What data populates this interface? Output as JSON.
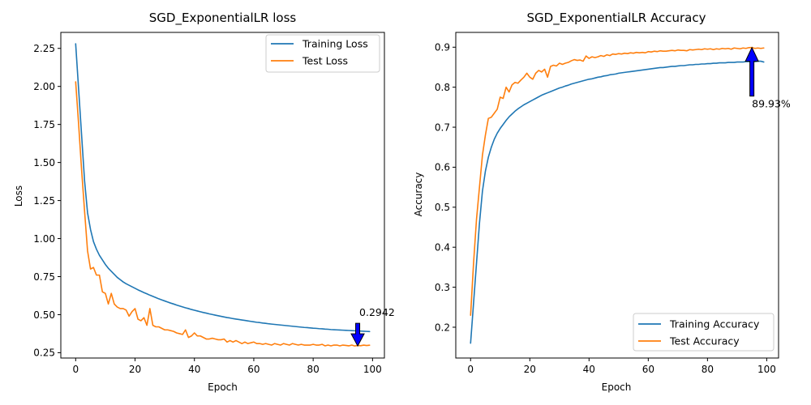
{
  "chart_data": [
    {
      "type": "line",
      "title": "SGD_ExponentialLR loss",
      "xlabel": "Epoch",
      "ylabel": "Loss",
      "xlim": [
        -5,
        104
      ],
      "ylim": [
        0.215,
        2.355
      ],
      "xticks": [
        0,
        20,
        40,
        60,
        80,
        100
      ],
      "xtick_labels": [
        "0",
        "20",
        "40",
        "60",
        "80",
        "100"
      ],
      "yticks": [
        0.25,
        0.5,
        0.75,
        1.0,
        1.25,
        1.5,
        1.75,
        2.0,
        2.25
      ],
      "ytick_labels": [
        "0.25",
        "0.50",
        "0.75",
        "1.00",
        "1.25",
        "1.50",
        "1.75",
        "2.00",
        "2.25"
      ],
      "grid": false,
      "legend_position": "top-right",
      "x": [
        0,
        1,
        2,
        3,
        4,
        5,
        6,
        7,
        8,
        9,
        10,
        11,
        12,
        13,
        14,
        15,
        16,
        17,
        18,
        19,
        20,
        21,
        22,
        23,
        24,
        25,
        26,
        27,
        28,
        29,
        30,
        31,
        32,
        33,
        34,
        35,
        36,
        37,
        38,
        39,
        40,
        41,
        42,
        43,
        44,
        45,
        46,
        47,
        48,
        49,
        50,
        51,
        52,
        53,
        54,
        55,
        56,
        57,
        58,
        59,
        60,
        61,
        62,
        63,
        64,
        65,
        66,
        67,
        68,
        69,
        70,
        71,
        72,
        73,
        74,
        75,
        76,
        77,
        78,
        79,
        80,
        81,
        82,
        83,
        84,
        85,
        86,
        87,
        88,
        89,
        90,
        91,
        92,
        93,
        94,
        95,
        96,
        97,
        98,
        99
      ],
      "series": [
        {
          "name": "Training Loss",
          "color": "#1f77b4",
          "values": [
            2.28,
            1.98,
            1.68,
            1.38,
            1.17,
            1.06,
            0.98,
            0.93,
            0.89,
            0.86,
            0.83,
            0.805,
            0.785,
            0.765,
            0.745,
            0.73,
            0.715,
            0.703,
            0.693,
            0.683,
            0.673,
            0.663,
            0.654,
            0.645,
            0.637,
            0.628,
            0.62,
            0.612,
            0.604,
            0.597,
            0.59,
            0.583,
            0.576,
            0.57,
            0.563,
            0.557,
            0.551,
            0.545,
            0.54,
            0.534,
            0.529,
            0.524,
            0.519,
            0.514,
            0.51,
            0.505,
            0.501,
            0.497,
            0.493,
            0.489,
            0.485,
            0.481,
            0.478,
            0.474,
            0.471,
            0.468,
            0.465,
            0.462,
            0.459,
            0.456,
            0.453,
            0.45,
            0.448,
            0.445,
            0.443,
            0.44,
            0.438,
            0.436,
            0.434,
            0.432,
            0.43,
            0.428,
            0.426,
            0.424,
            0.422,
            0.42,
            0.418,
            0.416,
            0.415,
            0.413,
            0.411,
            0.41,
            0.408,
            0.407,
            0.405,
            0.404,
            0.402,
            0.401,
            0.4,
            0.399,
            0.398,
            0.397,
            0.396,
            0.395,
            0.394,
            0.393,
            0.392,
            0.391,
            0.39,
            0.389
          ]
        },
        {
          "name": "Test Loss",
          "color": "#ff7f0e",
          "values": [
            2.03,
            1.75,
            1.45,
            1.18,
            0.92,
            0.8,
            0.81,
            0.76,
            0.76,
            0.65,
            0.64,
            0.57,
            0.64,
            0.57,
            0.55,
            0.54,
            0.54,
            0.53,
            0.49,
            0.52,
            0.54,
            0.47,
            0.46,
            0.48,
            0.43,
            0.54,
            0.43,
            0.42,
            0.42,
            0.41,
            0.4,
            0.4,
            0.395,
            0.39,
            0.38,
            0.375,
            0.37,
            0.4,
            0.35,
            0.36,
            0.38,
            0.36,
            0.36,
            0.35,
            0.34,
            0.34,
            0.345,
            0.34,
            0.335,
            0.335,
            0.34,
            0.32,
            0.33,
            0.32,
            0.33,
            0.32,
            0.31,
            0.32,
            0.31,
            0.315,
            0.32,
            0.31,
            0.31,
            0.305,
            0.31,
            0.305,
            0.3,
            0.31,
            0.305,
            0.3,
            0.31,
            0.305,
            0.3,
            0.31,
            0.305,
            0.3,
            0.305,
            0.3,
            0.3,
            0.3,
            0.305,
            0.3,
            0.3,
            0.305,
            0.295,
            0.3,
            0.295,
            0.3,
            0.3,
            0.295,
            0.3,
            0.298,
            0.295,
            0.3,
            0.2942,
            0.298,
            0.296,
            0.3,
            0.297,
            0.299
          ]
        }
      ],
      "annotation": {
        "text": "0.2942",
        "x": 95,
        "y": 0.2942,
        "direction": "down",
        "color": "#0000ff"
      }
    },
    {
      "type": "line",
      "title": "SGD_ExponentialLR Accuracy",
      "xlabel": "Epoch",
      "ylabel": "Accuracy",
      "xlim": [
        -5,
        104
      ],
      "ylim": [
        0.123,
        0.937
      ],
      "xticks": [
        0,
        20,
        40,
        60,
        80,
        100
      ],
      "xtick_labels": [
        "0",
        "20",
        "40",
        "60",
        "80",
        "100"
      ],
      "yticks": [
        0.2,
        0.3,
        0.4,
        0.5,
        0.6,
        0.7,
        0.8,
        0.9
      ],
      "ytick_labels": [
        "0.2",
        "0.3",
        "0.4",
        "0.5",
        "0.6",
        "0.7",
        "0.8",
        "0.9"
      ],
      "grid": false,
      "legend_position": "bottom-right",
      "x": [
        0,
        1,
        2,
        3,
        4,
        5,
        6,
        7,
        8,
        9,
        10,
        11,
        12,
        13,
        14,
        15,
        16,
        17,
        18,
        19,
        20,
        21,
        22,
        23,
        24,
        25,
        26,
        27,
        28,
        29,
        30,
        31,
        32,
        33,
        34,
        35,
        36,
        37,
        38,
        39,
        40,
        41,
        42,
        43,
        44,
        45,
        46,
        47,
        48,
        49,
        50,
        51,
        52,
        53,
        54,
        55,
        56,
        57,
        58,
        59,
        60,
        61,
        62,
        63,
        64,
        65,
        66,
        67,
        68,
        69,
        70,
        71,
        72,
        73,
        74,
        75,
        76,
        77,
        78,
        79,
        80,
        81,
        82,
        83,
        84,
        85,
        86,
        87,
        88,
        89,
        90,
        91,
        92,
        93,
        94,
        95,
        96,
        97,
        98,
        99
      ],
      "series": [
        {
          "name": "Training Accuracy",
          "color": "#1f77b4",
          "values": [
            0.16,
            0.26,
            0.36,
            0.46,
            0.54,
            0.59,
            0.625,
            0.65,
            0.67,
            0.685,
            0.697,
            0.707,
            0.717,
            0.726,
            0.733,
            0.74,
            0.746,
            0.751,
            0.756,
            0.76,
            0.764,
            0.768,
            0.772,
            0.776,
            0.78,
            0.783,
            0.786,
            0.789,
            0.792,
            0.795,
            0.798,
            0.8,
            0.803,
            0.805,
            0.808,
            0.81,
            0.812,
            0.814,
            0.816,
            0.818,
            0.82,
            0.821,
            0.823,
            0.825,
            0.826,
            0.828,
            0.829,
            0.831,
            0.832,
            0.833,
            0.835,
            0.836,
            0.837,
            0.838,
            0.839,
            0.84,
            0.841,
            0.842,
            0.843,
            0.844,
            0.845,
            0.846,
            0.847,
            0.848,
            0.849,
            0.849,
            0.85,
            0.851,
            0.852,
            0.852,
            0.853,
            0.854,
            0.854,
            0.855,
            0.856,
            0.856,
            0.857,
            0.857,
            0.858,
            0.858,
            0.859,
            0.859,
            0.86,
            0.86,
            0.861,
            0.861,
            0.861,
            0.862,
            0.862,
            0.862,
            0.863,
            0.863,
            0.863,
            0.864,
            0.864,
            0.864,
            0.864,
            0.865,
            0.865,
            0.863
          ]
        },
        {
          "name": "Test Accuracy",
          "color": "#ff7f0e",
          "values": [
            0.23,
            0.36,
            0.47,
            0.55,
            0.63,
            0.68,
            0.722,
            0.725,
            0.735,
            0.745,
            0.775,
            0.772,
            0.8,
            0.788,
            0.806,
            0.812,
            0.81,
            0.818,
            0.825,
            0.835,
            0.825,
            0.82,
            0.835,
            0.842,
            0.838,
            0.845,
            0.825,
            0.852,
            0.855,
            0.853,
            0.86,
            0.857,
            0.86,
            0.862,
            0.866,
            0.869,
            0.867,
            0.868,
            0.865,
            0.878,
            0.872,
            0.876,
            0.874,
            0.876,
            0.879,
            0.877,
            0.881,
            0.879,
            0.883,
            0.882,
            0.884,
            0.883,
            0.885,
            0.884,
            0.886,
            0.885,
            0.887,
            0.886,
            0.887,
            0.886,
            0.889,
            0.888,
            0.89,
            0.889,
            0.891,
            0.89,
            0.89,
            0.891,
            0.892,
            0.891,
            0.893,
            0.892,
            0.892,
            0.891,
            0.894,
            0.893,
            0.894,
            0.895,
            0.894,
            0.896,
            0.895,
            0.896,
            0.894,
            0.896,
            0.895,
            0.897,
            0.896,
            0.897,
            0.895,
            0.898,
            0.897,
            0.896,
            0.898,
            0.897,
            0.899,
            0.8993,
            0.897,
            0.898,
            0.897,
            0.898
          ]
        }
      ],
      "annotation": {
        "text": "89.93%",
        "x": 95,
        "y": 0.8993,
        "direction": "up",
        "color": "#0000ff"
      }
    }
  ]
}
